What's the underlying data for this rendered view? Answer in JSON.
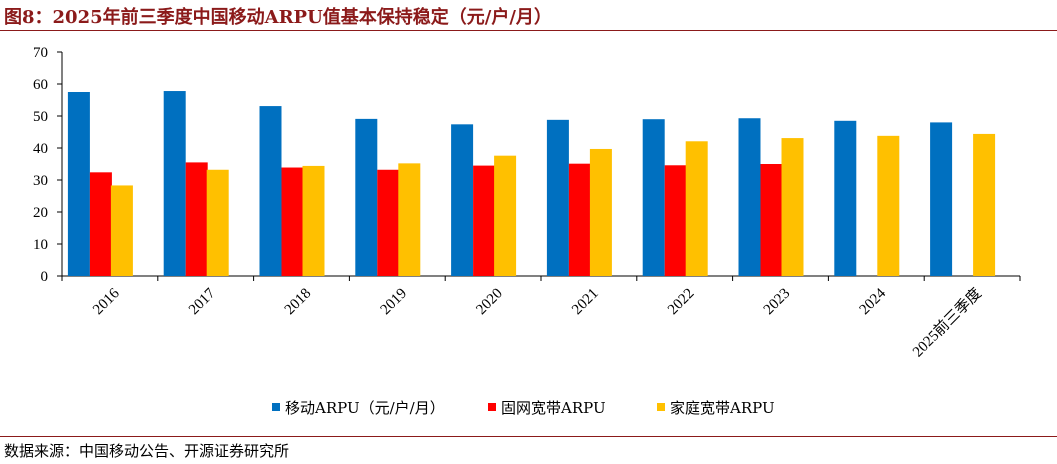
{
  "title": "图8：2025年前三季度中国移动ARPU值基本保持稳定（元/户/月）",
  "source": "数据来源：中国移动公告、开源证券研究所",
  "chart_data": {
    "type": "bar",
    "title": "",
    "xlabel": "",
    "ylabel": "",
    "ylim": [
      0,
      70
    ],
    "yticks": [
      0,
      10,
      20,
      30,
      40,
      50,
      60,
      70
    ],
    "grid": false,
    "legend_position": "bottom",
    "categories": [
      "2016",
      "2017",
      "2018",
      "2019",
      "2020",
      "2021",
      "2022",
      "2023",
      "2024",
      "2025前三季度"
    ],
    "series": [
      {
        "name": "移动ARPU（元/户/月）",
        "color": "#0070C0",
        "values": [
          57.5,
          57.8,
          53.1,
          49.1,
          47.4,
          48.8,
          49.0,
          49.3,
          48.5,
          48.0
        ]
      },
      {
        "name": "固网宽带ARPU",
        "color": "#FF0000",
        "values": [
          32.4,
          35.5,
          33.9,
          33.2,
          34.5,
          35.1,
          34.6,
          35.0,
          null,
          null
        ]
      },
      {
        "name": "家庭宽带ARPU",
        "color": "#FFC000",
        "values": [
          28.3,
          33.2,
          34.4,
          35.2,
          37.6,
          39.7,
          42.1,
          43.1,
          43.8,
          44.4
        ]
      }
    ]
  }
}
